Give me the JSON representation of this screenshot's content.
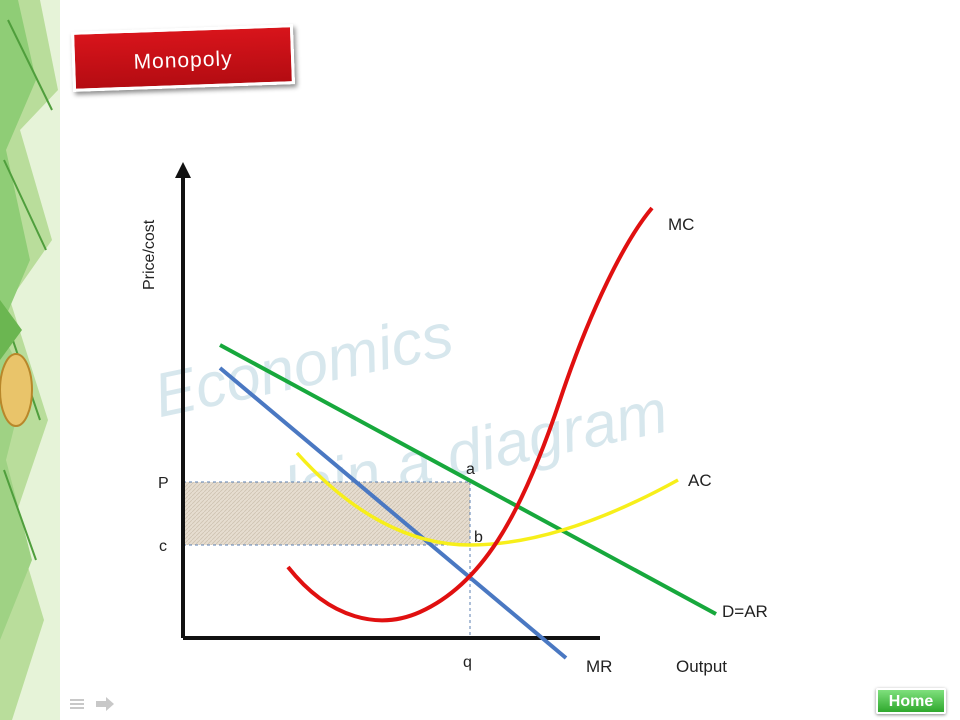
{
  "slide": {
    "title": "Monopoly",
    "watermark_line1": "Economics",
    "watermark_line2": "Explain a diagram",
    "home_label": "Home"
  },
  "diagram": {
    "y_axis_label": "Price/cost",
    "x_axis_label": "Output",
    "curves": {
      "mc": {
        "label": "MC",
        "color": "#e01010"
      },
      "ac": {
        "label": "AC",
        "color": "#f7ef1a"
      },
      "d_ar": {
        "label": "D=AR",
        "color": "#17a83c"
      },
      "mr": {
        "label": "MR",
        "color": "#4a78c2"
      }
    },
    "points": {
      "a": "a",
      "b": "b",
      "p": "P",
      "c": "c",
      "q": "q"
    },
    "profit_area_color": "#e8e0d4"
  }
}
